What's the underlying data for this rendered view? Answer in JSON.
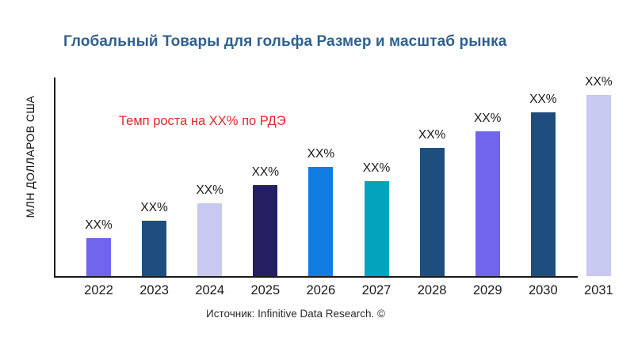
{
  "header": {
    "title": "Глобальный Товары для гольфа Размер и масштаб рынка",
    "title_color": "#2e6191"
  },
  "annotation": {
    "growth_note": "Темп роста на XX% по РДЭ",
    "color": "#e0282e"
  },
  "footer": {
    "source": "Источник: Infinitive Data Research. ©"
  },
  "chart_data": {
    "type": "bar",
    "title": "Глобальный Товары для гольфа Размер и масштаб рынка",
    "xlabel": "",
    "ylabel": "МЛН ДОЛЛАРОВ США",
    "categories": [
      "2022",
      "2023",
      "2024",
      "2025",
      "2026",
      "2027",
      "2028",
      "2029",
      "2030",
      "2031"
    ],
    "values": [
      48,
      70,
      92,
      115,
      138,
      120,
      162,
      183,
      207,
      229
    ],
    "values_note": "relative bar heights in px; numeric axis values not shown on chart",
    "data_labels": [
      "XX%",
      "XX%",
      "XX%",
      "XX%",
      "XX%",
      "XX%",
      "XX%",
      "XX%",
      "XX%",
      "XX%"
    ],
    "bar_colors": [
      "#7164ed",
      "#1f4e7e",
      "#c7c9f0",
      "#241e62",
      "#117de3",
      "#02a3bc",
      "#1f4e7e",
      "#7164ed",
      "#1f4e7e",
      "#c7c9f0"
    ],
    "grid": false,
    "legend": "none",
    "y_ticks": [],
    "axis_color": "#1a1a1a"
  }
}
